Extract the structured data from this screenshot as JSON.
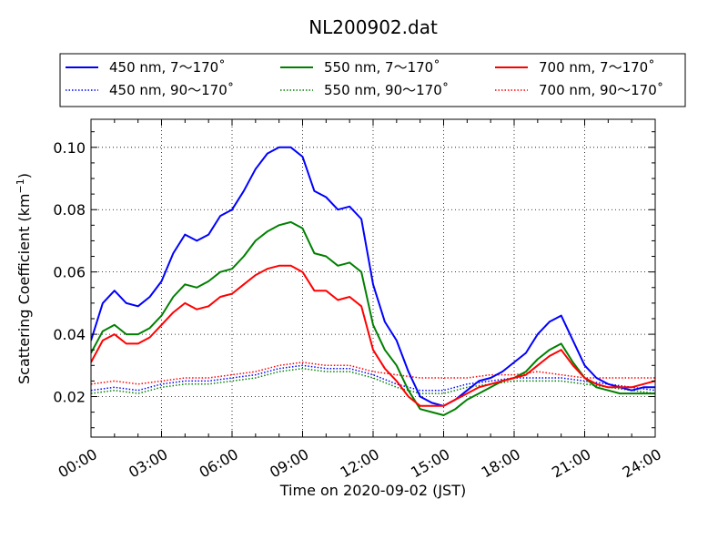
{
  "chart_data": {
    "type": "line",
    "title": "NL200902.dat",
    "xlabel": "Time on 2020-09-02 (JST)",
    "ylabel_main": "Scattering Coefficient (km",
    "ylabel_sup": "−1",
    "ylabel_end": ")",
    "xlim": [
      0,
      24
    ],
    "ylim": [
      0.007,
      0.109
    ],
    "x_unit": "hour of day",
    "x_ticks": [
      0,
      3,
      6,
      9,
      12,
      15,
      18,
      21,
      24
    ],
    "x_tick_labels": [
      "00:00",
      "03:00",
      "06:00",
      "09:00",
      "12:00",
      "15:00",
      "18:00",
      "21:00",
      "24:00"
    ],
    "y_ticks": [
      0.02,
      0.04,
      0.06,
      0.08,
      0.1
    ],
    "y_tick_labels": [
      "0.02",
      "0.04",
      "0.06",
      "0.08",
      "0.10"
    ],
    "grid": true,
    "grid_style": "dotted",
    "legend_position": "top, above plot",
    "series": [
      {
        "name": "450 nm, 7～170˚",
        "color": "#0000ff",
        "style": "solid",
        "x": [
          0,
          0.5,
          1,
          1.5,
          2,
          2.5,
          3,
          3.5,
          4,
          4.5,
          5,
          5.5,
          6,
          6.5,
          7,
          7.5,
          8,
          8.5,
          9,
          9.5,
          10,
          10.5,
          11,
          11.5,
          12,
          12.5,
          13,
          13.5,
          14,
          14.5,
          15,
          15.5,
          16,
          16.5,
          17,
          17.5,
          18,
          18.5,
          19,
          19.5,
          20,
          20.5,
          21,
          21.5,
          22,
          22.5,
          23,
          23.5,
          24
        ],
        "values": [
          0.038,
          0.05,
          0.054,
          0.05,
          0.049,
          0.052,
          0.057,
          0.066,
          0.072,
          0.07,
          0.072,
          0.078,
          0.08,
          0.086,
          0.093,
          0.098,
          0.1,
          0.1,
          0.097,
          0.086,
          0.084,
          0.08,
          0.081,
          0.077,
          0.056,
          0.044,
          0.038,
          0.028,
          0.02,
          0.018,
          0.017,
          0.019,
          0.022,
          0.025,
          0.026,
          0.028,
          0.031,
          0.034,
          0.04,
          0.044,
          0.046,
          0.038,
          0.03,
          0.026,
          0.024,
          0.023,
          0.022,
          0.023,
          0.023
        ]
      },
      {
        "name": "550 nm, 7～170˚",
        "color": "#008000",
        "style": "solid",
        "x": [
          0,
          0.5,
          1,
          1.5,
          2,
          2.5,
          3,
          3.5,
          4,
          4.5,
          5,
          5.5,
          6,
          6.5,
          7,
          7.5,
          8,
          8.5,
          9,
          9.5,
          10,
          10.5,
          11,
          11.5,
          12,
          12.5,
          13,
          13.5,
          14,
          14.5,
          15,
          15.5,
          16,
          16.5,
          17,
          17.5,
          18,
          18.5,
          19,
          19.5,
          20,
          20.5,
          21,
          21.5,
          22,
          22.5,
          23,
          23.5,
          24
        ],
        "values": [
          0.034,
          0.041,
          0.043,
          0.04,
          0.04,
          0.042,
          0.046,
          0.052,
          0.056,
          0.055,
          0.057,
          0.06,
          0.061,
          0.065,
          0.07,
          0.073,
          0.075,
          0.076,
          0.074,
          0.066,
          0.065,
          0.062,
          0.063,
          0.06,
          0.043,
          0.035,
          0.03,
          0.022,
          0.016,
          0.015,
          0.014,
          0.016,
          0.019,
          0.021,
          0.023,
          0.025,
          0.026,
          0.028,
          0.032,
          0.035,
          0.037,
          0.031,
          0.026,
          0.023,
          0.022,
          0.021,
          0.021,
          0.021,
          0.021
        ]
      },
      {
        "name": "700 nm, 7～170˚",
        "color": "#ff0000",
        "style": "solid",
        "x": [
          0,
          0.5,
          1,
          1.5,
          2,
          2.5,
          3,
          3.5,
          4,
          4.5,
          5,
          5.5,
          6,
          6.5,
          7,
          7.5,
          8,
          8.5,
          9,
          9.5,
          10,
          10.5,
          11,
          11.5,
          12,
          12.5,
          13,
          13.5,
          14,
          14.5,
          15,
          15.5,
          16,
          16.5,
          17,
          17.5,
          18,
          18.5,
          19,
          19.5,
          20,
          20.5,
          21,
          21.5,
          22,
          22.5,
          23,
          23.5,
          24
        ],
        "values": [
          0.031,
          0.038,
          0.04,
          0.037,
          0.037,
          0.039,
          0.043,
          0.047,
          0.05,
          0.048,
          0.049,
          0.052,
          0.053,
          0.056,
          0.059,
          0.061,
          0.062,
          0.062,
          0.06,
          0.054,
          0.054,
          0.051,
          0.052,
          0.049,
          0.035,
          0.029,
          0.025,
          0.02,
          0.017,
          0.017,
          0.017,
          0.019,
          0.021,
          0.023,
          0.024,
          0.025,
          0.026,
          0.027,
          0.03,
          0.033,
          0.035,
          0.03,
          0.026,
          0.024,
          0.023,
          0.023,
          0.023,
          0.024,
          0.025
        ]
      },
      {
        "name": "450 nm, 90～170˚",
        "color": "#0000ff",
        "style": "dotted",
        "x": [
          0,
          1,
          2,
          3,
          4,
          5,
          6,
          7,
          8,
          9,
          10,
          11,
          12,
          13,
          14,
          15,
          16,
          17,
          18,
          19,
          20,
          21,
          22,
          23,
          24
        ],
        "values": [
          0.022,
          0.023,
          0.022,
          0.024,
          0.025,
          0.025,
          0.026,
          0.027,
          0.029,
          0.03,
          0.029,
          0.029,
          0.027,
          0.024,
          0.022,
          0.022,
          0.024,
          0.025,
          0.026,
          0.026,
          0.026,
          0.025,
          0.024,
          0.023,
          0.022
        ]
      },
      {
        "name": "550 nm, 90～170˚",
        "color": "#008000",
        "style": "dotted",
        "x": [
          0,
          1,
          2,
          3,
          4,
          5,
          6,
          7,
          8,
          9,
          10,
          11,
          12,
          13,
          14,
          15,
          16,
          17,
          18,
          19,
          20,
          21,
          22,
          23,
          24
        ],
        "values": [
          0.021,
          0.022,
          0.021,
          0.023,
          0.024,
          0.024,
          0.025,
          0.026,
          0.028,
          0.029,
          0.028,
          0.028,
          0.026,
          0.023,
          0.021,
          0.021,
          0.023,
          0.024,
          0.025,
          0.025,
          0.025,
          0.024,
          0.023,
          0.022,
          0.021
        ]
      },
      {
        "name": "700 nm, 90～170˚",
        "color": "#ff0000",
        "style": "dotted",
        "x": [
          0,
          1,
          2,
          3,
          4,
          5,
          6,
          7,
          8,
          9,
          10,
          11,
          12,
          13,
          14,
          15,
          16,
          17,
          18,
          19,
          20,
          21,
          22,
          23,
          24
        ],
        "values": [
          0.024,
          0.025,
          0.024,
          0.025,
          0.026,
          0.026,
          0.027,
          0.028,
          0.03,
          0.031,
          0.03,
          0.03,
          0.028,
          0.027,
          0.026,
          0.026,
          0.026,
          0.027,
          0.027,
          0.028,
          0.027,
          0.026,
          0.026,
          0.026,
          0.026
        ]
      }
    ],
    "legend_order": [
      0,
      1,
      2,
      3,
      4,
      5
    ]
  }
}
